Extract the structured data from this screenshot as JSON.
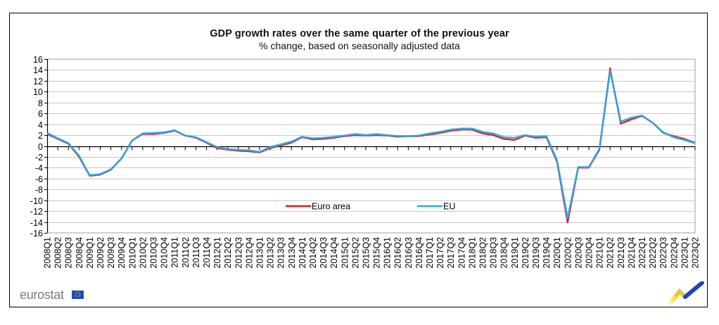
{
  "chart_data": {
    "type": "line",
    "title": "GDP growth rates over the same quarter of the previous year",
    "subtitle": "% change, based on seasonally adjusted data",
    "xlabel": "",
    "ylabel": "",
    "ylim": [
      -16,
      16
    ],
    "yticks": [
      16,
      14,
      12,
      10,
      8,
      6,
      4,
      2,
      0,
      -2,
      -4,
      -6,
      -8,
      -10,
      -12,
      -14,
      -16
    ],
    "grid": true,
    "legend_position": "center-bottom",
    "x": [
      "2008Q1",
      "2008Q2",
      "2008Q3",
      "2008Q4",
      "2009Q1",
      "2009Q2",
      "2009Q3",
      "2009Q4",
      "2010Q1",
      "2010Q2",
      "2010Q3",
      "2010Q4",
      "2011Q1",
      "2011Q2",
      "2011Q3",
      "2011Q4",
      "2012Q1",
      "2012Q2",
      "2012Q3",
      "2012Q4",
      "2013Q1",
      "2013Q2",
      "2013Q3",
      "2013Q4",
      "2014Q1",
      "2014Q2",
      "2014Q3",
      "2014Q4",
      "2015Q1",
      "2015Q2",
      "2015Q3",
      "2015Q4",
      "2016Q1",
      "2016Q2",
      "2016Q3",
      "2016Q4",
      "2017Q1",
      "2017Q2",
      "2017Q3",
      "2017Q4",
      "2018Q1",
      "2018Q2",
      "2018Q3",
      "2018Q4",
      "2019Q1",
      "2019Q2",
      "2019Q3",
      "2019Q4",
      "2020Q1",
      "2020Q2",
      "2020Q3",
      "2020Q4",
      "2021Q1",
      "2021Q2",
      "2021Q3",
      "2021Q4",
      "2022Q1",
      "2022Q2",
      "2022Q3",
      "2022Q4",
      "2023Q1",
      "2023Q2"
    ],
    "series": [
      {
        "name": "Euro area",
        "color": "#e8141c",
        "values": [
          2.2,
          1.3,
          0.4,
          -2.0,
          -5.5,
          -5.3,
          -4.4,
          -2.3,
          1.0,
          2.2,
          2.2,
          2.4,
          2.8,
          1.9,
          1.5,
          0.6,
          -0.4,
          -0.7,
          -0.9,
          -1.0,
          -1.2,
          -0.4,
          0.1,
          0.6,
          1.6,
          1.2,
          1.3,
          1.5,
          1.8,
          2.0,
          1.9,
          2.0,
          1.9,
          1.7,
          1.8,
          1.8,
          2.1,
          2.4,
          2.8,
          3.0,
          3.0,
          2.3,
          2.0,
          1.3,
          1.1,
          1.9,
          1.5,
          1.6,
          -2.9,
          -14.1,
          -4.0,
          -4.0,
          -0.7,
          14.3,
          4.1,
          4.9,
          5.5,
          4.3,
          2.4,
          1.8,
          1.3,
          0.6
        ]
      },
      {
        "name": "EU",
        "color": "#29a8e0",
        "values": [
          2.4,
          1.4,
          0.5,
          -1.8,
          -5.4,
          -5.2,
          -4.3,
          -2.3,
          1.0,
          2.3,
          2.4,
          2.5,
          2.9,
          1.9,
          1.6,
          0.7,
          -0.2,
          -0.6,
          -0.7,
          -0.8,
          -1.1,
          -0.2,
          0.3,
          0.8,
          1.7,
          1.4,
          1.5,
          1.7,
          1.9,
          2.2,
          2.0,
          2.2,
          2.0,
          1.8,
          1.8,
          1.9,
          2.3,
          2.6,
          3.0,
          3.2,
          3.2,
          2.6,
          2.3,
          1.6,
          1.5,
          2.0,
          1.7,
          1.8,
          -2.6,
          -13.3,
          -3.9,
          -3.9,
          -0.5,
          13.9,
          4.5,
          5.2,
          5.6,
          4.3,
          2.5,
          1.6,
          1.1,
          0.5
        ]
      }
    ]
  },
  "footer": {
    "logo_text": "eurostat"
  }
}
